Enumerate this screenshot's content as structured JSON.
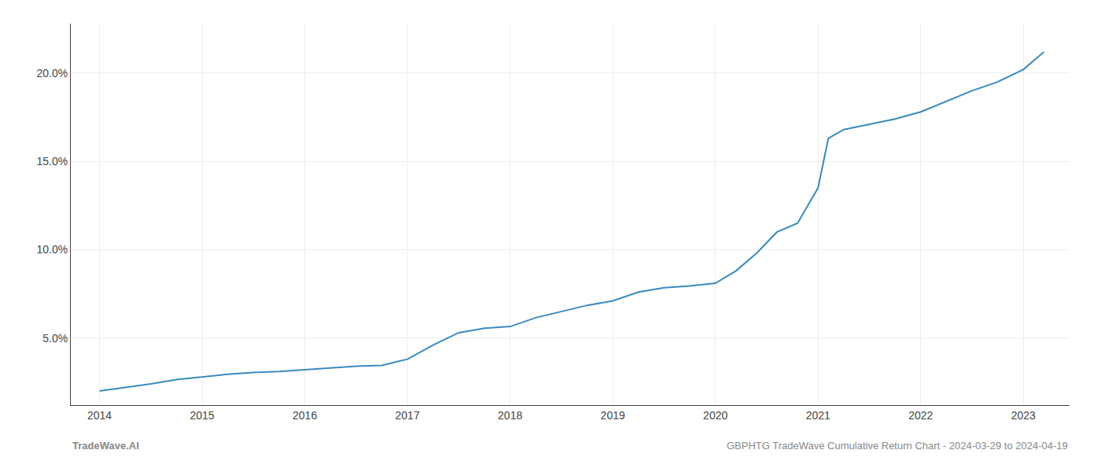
{
  "chart_data": {
    "type": "line",
    "x": [
      2014.0,
      2014.2,
      2014.5,
      2014.75,
      2015.0,
      2015.25,
      2015.5,
      2015.75,
      2016.0,
      2016.25,
      2016.5,
      2016.75,
      2017.0,
      2017.25,
      2017.5,
      2017.75,
      2018.0,
      2018.25,
      2018.5,
      2018.75,
      2019.0,
      2019.25,
      2019.5,
      2019.75,
      2020.0,
      2020.2,
      2020.4,
      2020.6,
      2020.8,
      2021.0,
      2021.1,
      2021.25,
      2021.5,
      2021.75,
      2022.0,
      2022.25,
      2022.5,
      2022.75,
      2023.0,
      2023.2
    ],
    "values": [
      2.0,
      2.15,
      2.4,
      2.65,
      2.8,
      2.95,
      3.05,
      3.1,
      3.2,
      3.3,
      3.4,
      3.45,
      3.8,
      4.6,
      5.3,
      5.55,
      5.65,
      6.15,
      6.5,
      6.85,
      7.1,
      7.6,
      7.85,
      7.95,
      8.1,
      8.8,
      9.8,
      11.0,
      11.5,
      13.5,
      16.3,
      16.8,
      17.1,
      17.4,
      17.8,
      18.4,
      19.0,
      19.5,
      20.2,
      21.2
    ],
    "color": "#3a8abf",
    "xlim": [
      2013.72,
      2023.45
    ],
    "ylim": [
      1.2,
      22.8
    ],
    "xticks": [
      2014,
      2015,
      2016,
      2017,
      2018,
      2019,
      2020,
      2021,
      2022,
      2023
    ],
    "yticks": [
      {
        "value": 5.0,
        "label": "5.0%"
      },
      {
        "value": 10.0,
        "label": "10.0%"
      },
      {
        "value": 15.0,
        "label": "15.0%"
      },
      {
        "value": 20.0,
        "label": "20.0%"
      }
    ],
    "grid": true,
    "annotations": [
      "TradeWave.AI",
      "GBPHTG TradeWave Cumulative Return Chart - 2024-03-29 to 2024-04-19"
    ]
  }
}
